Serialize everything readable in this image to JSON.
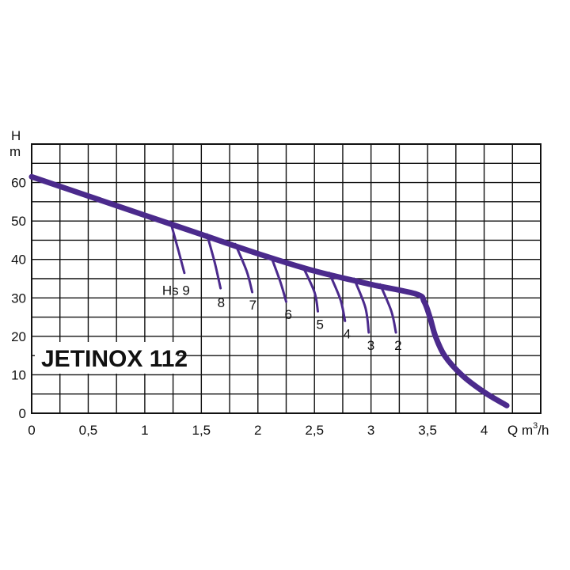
{
  "chart_data": {
    "type": "line",
    "title": "JETINOX 112",
    "xlabel": "Q m³/h",
    "ylabel": "H m",
    "ylabel_top": "H",
    "ylabel_bottom": "m",
    "x_unit_prefix": "Q m",
    "x_unit_sup": "3",
    "x_unit_suffix": "/h",
    "xlim": [
      0,
      4.5
    ],
    "ylim": [
      0,
      70
    ],
    "x_ticks": [
      0,
      0.5,
      1,
      1.5,
      2,
      2.5,
      3,
      3.5,
      4
    ],
    "x_tick_labels": [
      "0",
      "0,5",
      "1",
      "1,5",
      "2",
      "2,5",
      "3",
      "3,5",
      "4"
    ],
    "y_ticks": [
      0,
      10,
      20,
      30,
      40,
      50,
      60
    ],
    "y_tick_labels": [
      "0",
      "10",
      "20",
      "30",
      "40",
      "50",
      "60"
    ],
    "grid": true,
    "colors": {
      "curve": "#4b2a8c",
      "grid": "#111111"
    },
    "series": [
      {
        "id": "pump-curve",
        "x": [
          0,
          0.5,
          1,
          1.5,
          2,
          2.5,
          3,
          3.4,
          3.47,
          3.52,
          3.57,
          3.65,
          3.8,
          4,
          4.2
        ],
        "y": [
          61.5,
          56.5,
          51.5,
          46.5,
          41.5,
          37,
          33.5,
          31,
          29,
          25,
          20,
          15,
          10,
          5.5,
          2
        ]
      }
    ],
    "suction_curves": [
      {
        "label": "Hs 9",
        "x": [
          1.23,
          1.3,
          1.35
        ],
        "y": [
          49.5,
          42,
          36.5
        ]
      },
      {
        "label": "8",
        "x": [
          1.55,
          1.62,
          1.67
        ],
        "y": [
          46.5,
          39,
          32.5
        ]
      },
      {
        "label": "7",
        "x": [
          1.8,
          1.9,
          1.95
        ],
        "y": [
          44,
          37,
          31.5
        ]
      },
      {
        "label": "6",
        "x": [
          2.12,
          2.2,
          2.25
        ],
        "y": [
          40.5,
          34,
          29
        ]
      },
      {
        "label": "5",
        "x": [
          2.4,
          2.5,
          2.53
        ],
        "y": [
          38,
          31.5,
          26.5
        ]
      },
      {
        "label": "4",
        "x": [
          2.63,
          2.73,
          2.77
        ],
        "y": [
          36.5,
          29.5,
          24
        ]
      },
      {
        "label": "3",
        "x": [
          2.85,
          2.95,
          2.98
        ],
        "y": [
          35,
          27.5,
          21
        ]
      },
      {
        "label": "2",
        "x": [
          3.08,
          3.18,
          3.22
        ],
        "y": [
          33.5,
          26.5,
          21
        ]
      }
    ]
  }
}
